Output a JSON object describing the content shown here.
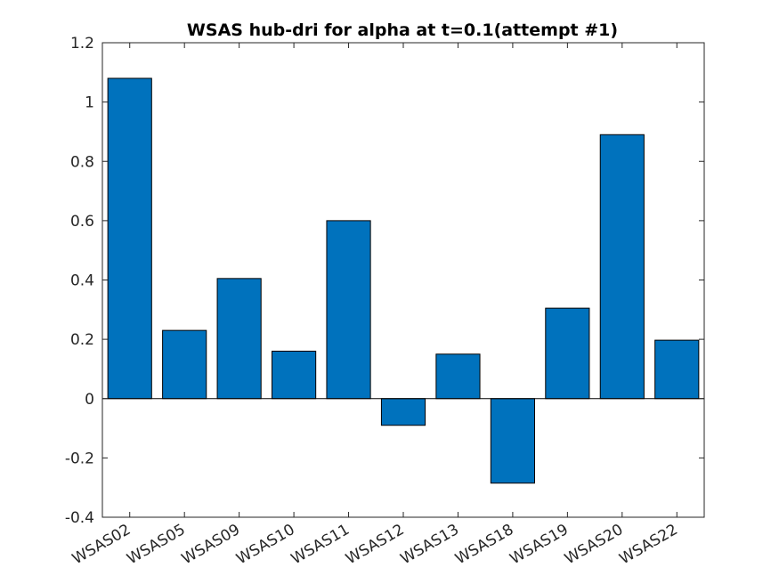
{
  "chart_data": {
    "type": "bar",
    "title": "WSAS hub-dri for alpha at t=0.1(attempt #1)",
    "xlabel": "",
    "ylabel": "",
    "categories": [
      "WSAS02",
      "WSAS05",
      "WSAS09",
      "WSAS10",
      "WSAS11",
      "WSAS12",
      "WSAS13",
      "WSAS18",
      "WSAS19",
      "WSAS20",
      "WSAS22"
    ],
    "values": [
      1.08,
      0.23,
      0.405,
      0.16,
      0.6,
      -0.09,
      0.15,
      -0.285,
      0.305,
      0.89,
      0.197
    ],
    "ylim": [
      -0.4,
      1.2
    ],
    "yticks": [
      "-0.4",
      "-0.2",
      "0",
      "0.2",
      "0.4",
      "0.6",
      "0.8",
      "1",
      "1.2"
    ],
    "bar_color": "#0072BD",
    "grid": false,
    "legend": "none"
  }
}
